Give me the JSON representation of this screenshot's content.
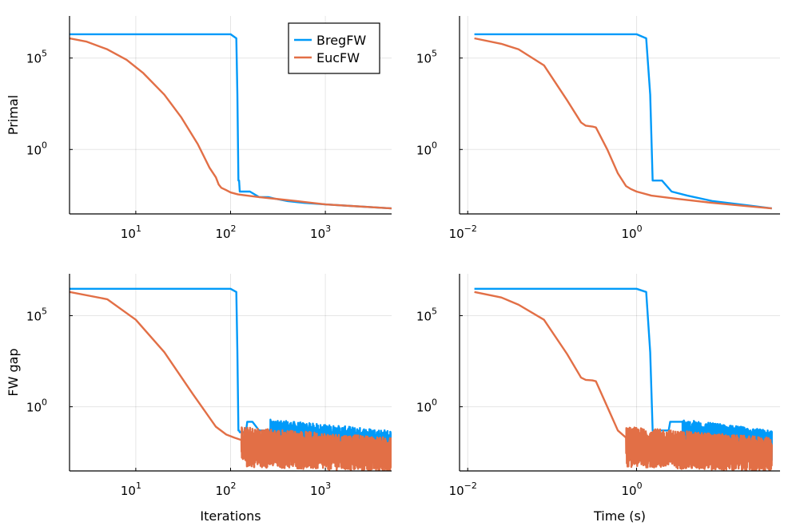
{
  "figure": {
    "legend": {
      "items": [
        "BregFW",
        "EucFW"
      ],
      "colors": [
        "#009af9",
        "#e26f46"
      ],
      "placement": "top-right of first panel"
    }
  },
  "chart_data": [
    {
      "type": "line",
      "panel": "top-left",
      "xscale": "log",
      "yscale": "log",
      "xlabel": "",
      "ylabel": "Primal",
      "xlim": [
        2,
        5000
      ],
      "ylim": [
        0.0003,
        20000000.0
      ],
      "xticks": [
        {
          "base": "10",
          "exp": "1"
        },
        {
          "base": "10",
          "exp": "2"
        },
        {
          "base": "10",
          "exp": "3"
        }
      ],
      "yticks": [
        {
          "base": "10",
          "exp": "5"
        },
        {
          "base": "10",
          "exp": "0"
        }
      ],
      "series": [
        {
          "name": "BregFW",
          "x": [
            2,
            100,
            115,
            118,
            121,
            123,
            125,
            135,
            160,
            200,
            250,
            300,
            400,
            600,
            1000,
            2000,
            5000
          ],
          "y": [
            2000000,
            2000000,
            1200000,
            1000,
            0.02,
            0.02,
            0.005,
            0.005,
            0.005,
            0.0025,
            0.0025,
            0.002,
            0.0015,
            0.0012,
            0.001,
            0.0008,
            0.0006
          ]
        },
        {
          "name": "EucFW",
          "x": [
            2,
            3,
            5,
            8,
            12,
            20,
            30,
            45,
            60,
            70,
            75,
            80,
            90,
            100,
            120,
            150,
            200,
            300,
            500,
            1000,
            2000,
            5000
          ],
          "y": [
            1200000,
            800000,
            300000,
            80000,
            15000,
            1000,
            60,
            2,
            0.1,
            0.03,
            0.012,
            0.008,
            0.006,
            0.0045,
            0.0035,
            0.003,
            0.0025,
            0.002,
            0.0015,
            0.001,
            0.0008,
            0.0006
          ]
        }
      ]
    },
    {
      "type": "line",
      "panel": "top-right",
      "xscale": "log",
      "yscale": "log",
      "xlabel": "",
      "ylabel": "",
      "xlim": [
        0.008,
        50
      ],
      "ylim": [
        0.0003,
        20000000.0
      ],
      "xticks": [
        {
          "base": "10",
          "exp": "−2"
        },
        {
          "base": "10",
          "exp": "0"
        }
      ],
      "yticks": [
        {
          "base": "10",
          "exp": "5"
        },
        {
          "base": "10",
          "exp": "0"
        }
      ],
      "series": [
        {
          "name": "BregFW",
          "x": [
            0.012,
            1.0,
            1.3,
            1.45,
            1.55,
            1.65,
            2,
            2.6,
            4,
            8,
            20,
            40
          ],
          "y": [
            2000000,
            2000000,
            1200000,
            1000,
            0.02,
            0.02,
            0.02,
            0.005,
            0.003,
            0.0015,
            0.0009,
            0.0006
          ]
        },
        {
          "name": "EucFW",
          "x": [
            0.012,
            0.025,
            0.04,
            0.08,
            0.15,
            0.22,
            0.25,
            0.3,
            0.33,
            0.45,
            0.6,
            0.75,
            0.85,
            1,
            1.5,
            3,
            8,
            20,
            40
          ],
          "y": [
            1200000,
            600000,
            300000,
            40000,
            500,
            30,
            20,
            18,
            16,
            1,
            0.05,
            0.01,
            0.007,
            0.005,
            0.003,
            0.002,
            0.0012,
            0.0008,
            0.0006
          ]
        }
      ]
    },
    {
      "type": "line",
      "panel": "bottom-left",
      "xscale": "log",
      "yscale": "log",
      "xlabel": "Iterations",
      "ylabel": "FW gap",
      "xlim": [
        2,
        5000
      ],
      "ylim": [
        0.0003,
        20000000.0
      ],
      "xticks": [
        {
          "base": "10",
          "exp": "1"
        },
        {
          "base": "10",
          "exp": "2"
        },
        {
          "base": "10",
          "exp": "3"
        }
      ],
      "yticks": [
        {
          "base": "10",
          "exp": "5"
        },
        {
          "base": "10",
          "exp": "0"
        }
      ],
      "series": [
        {
          "name": "BregFW",
          "x": [
            2,
            100,
            115,
            118,
            121,
            123,
            125,
            145,
            150,
            170,
            200,
            260
          ],
          "y": [
            3000000,
            3000000,
            2000000,
            1000,
            0.05,
            0.05,
            0.04,
            0.04,
            0.15,
            0.15,
            0.05,
            0.05
          ],
          "noisy_from": 260,
          "noisy_to": 5000,
          "noise_low": 0.002,
          "noise_high": 0.1
        },
        {
          "name": "EucFW",
          "x": [
            2,
            5,
            10,
            20,
            40,
            70,
            90,
            110,
            130
          ],
          "y": [
            2000000,
            800000,
            60000,
            1000,
            5,
            0.08,
            0.03,
            0.02,
            0.015
          ],
          "noisy_from": 130,
          "noisy_to": 5000,
          "noise_low": 0.0005,
          "noise_high": 0.04
        }
      ]
    },
    {
      "type": "line",
      "panel": "bottom-right",
      "xscale": "log",
      "yscale": "log",
      "xlabel": "Time (s)",
      "ylabel": "",
      "xlim": [
        0.008,
        50
      ],
      "ylim": [
        0.0003,
        20000000.0
      ],
      "xticks": [
        {
          "base": "10",
          "exp": "−2"
        },
        {
          "base": "10",
          "exp": "0"
        }
      ],
      "yticks": [
        {
          "base": "10",
          "exp": "5"
        },
        {
          "base": "10",
          "exp": "0"
        }
      ],
      "series": [
        {
          "name": "BregFW",
          "x": [
            0.012,
            1.0,
            1.3,
            1.45,
            1.55,
            1.65,
            2.4,
            2.5,
            3.5
          ],
          "y": [
            3000000,
            3000000,
            2000000,
            1000,
            0.05,
            0.05,
            0.05,
            0.15,
            0.15
          ],
          "noisy_from": 3.5,
          "noisy_to": 40,
          "noise_low": 0.002,
          "noise_high": 0.1
        },
        {
          "name": "EucFW",
          "x": [
            0.012,
            0.025,
            0.04,
            0.08,
            0.15,
            0.22,
            0.25,
            0.3,
            0.33,
            0.45,
            0.6,
            0.75
          ],
          "y": [
            2000000,
            1000000,
            400000,
            60000,
            800,
            40,
            30,
            28,
            25,
            1,
            0.05,
            0.02
          ],
          "noisy_from": 0.75,
          "noisy_to": 40,
          "noise_low": 0.0005,
          "noise_high": 0.04
        }
      ]
    }
  ]
}
